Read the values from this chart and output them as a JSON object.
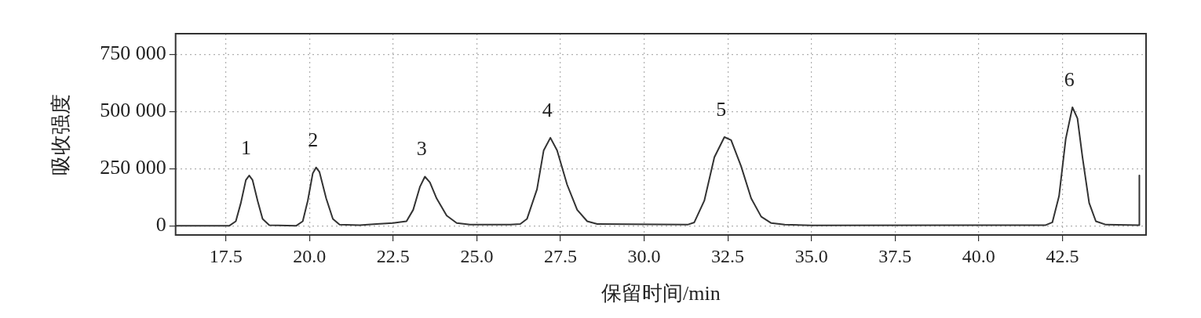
{
  "chart_data": {
    "type": "line",
    "xlabel": "保留时间/min",
    "ylabel": "吸收强度",
    "xlim": [
      16,
      45
    ],
    "xticks": [
      {
        "value": 17.5,
        "label": "17.5"
      },
      {
        "value": 20,
        "label": "20.0"
      },
      {
        "value": 22.5,
        "label": "22.5"
      },
      {
        "value": 25,
        "label": "25.0"
      },
      {
        "value": 27.5,
        "label": "27.5"
      },
      {
        "value": 30,
        "label": "30.0"
      },
      {
        "value": 32.5,
        "label": "32.5"
      },
      {
        "value": 35,
        "label": "35.0"
      },
      {
        "value": 37.5,
        "label": "37.5"
      },
      {
        "value": 40,
        "label": "40.0"
      },
      {
        "value": 42.5,
        "label": "42.5"
      }
    ],
    "ylim": [
      -40000,
      840000
    ],
    "yticks": [
      {
        "value": 0,
        "label": "0"
      },
      {
        "value": 250000,
        "label": "250 000"
      },
      {
        "value": 500000,
        "label": "500 000"
      },
      {
        "value": 750000,
        "label": "750 000"
      }
    ],
    "grid": true,
    "legend": false,
    "marker": "none",
    "line_style": "solid",
    "series": [
      {
        "color": "#333333",
        "x": [
          16,
          17.6,
          17.8,
          17.95,
          18.1,
          18.2,
          18.3,
          18.45,
          18.6,
          18.8,
          19.6,
          19.8,
          19.95,
          20.1,
          20.2,
          20.3,
          20.5,
          20.7,
          20.9,
          21.5,
          22.0,
          22.5,
          22.9,
          23.1,
          23.3,
          23.45,
          23.6,
          23.8,
          24.1,
          24.4,
          24.8,
          26.0,
          26.3,
          26.5,
          26.8,
          27.0,
          27.2,
          27.4,
          27.7,
          28.0,
          28.3,
          28.6,
          31.3,
          31.5,
          31.8,
          32.1,
          32.4,
          32.6,
          32.9,
          33.2,
          33.5,
          33.8,
          34.2,
          35.0,
          39.8,
          42.0,
          42.2,
          42.4,
          42.6,
          42.8,
          42.95,
          43.1,
          43.3,
          43.5,
          43.8,
          44.8,
          44.8
        ],
        "values": [
          0,
          0,
          20000,
          100000,
          200000,
          220000,
          200000,
          110000,
          30000,
          3000,
          0,
          20000,
          110000,
          230000,
          255000,
          235000,
          120000,
          30000,
          5000,
          3000,
          8000,
          12000,
          20000,
          70000,
          170000,
          215000,
          190000,
          120000,
          45000,
          12000,
          5000,
          5000,
          8000,
          30000,
          160000,
          330000,
          385000,
          330000,
          180000,
          70000,
          20000,
          8000,
          5000,
          15000,
          110000,
          300000,
          388000,
          375000,
          260000,
          120000,
          40000,
          12000,
          5000,
          2000,
          3000,
          3000,
          15000,
          130000,
          380000,
          518000,
          470000,
          300000,
          100000,
          20000,
          5000,
          3000,
          220000
        ]
      }
    ],
    "annotations": [
      {
        "text": "1",
        "x": 18.2,
        "y": 220000
      },
      {
        "text": "2",
        "x": 20.2,
        "y": 255000
      },
      {
        "text": "3",
        "x": 23.45,
        "y": 215000
      },
      {
        "text": "4",
        "x": 27.2,
        "y": 385000
      },
      {
        "text": "5",
        "x": 32.4,
        "y": 388000
      },
      {
        "text": "6",
        "x": 42.8,
        "y": 518000
      }
    ]
  }
}
